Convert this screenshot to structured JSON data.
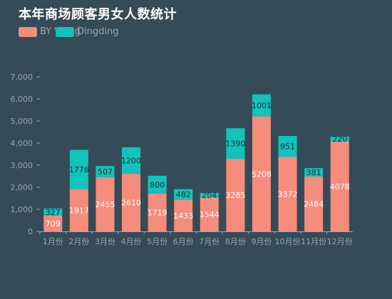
{
  "chart_data": {
    "type": "bar",
    "stacked": true,
    "title": "本年商场顾客男女人数统计",
    "categories": [
      "1月份",
      "2月份",
      "3月份",
      "4月份",
      "5月份",
      "6月份",
      "7月份",
      "8月份",
      "9月份",
      "10月份",
      "11月份",
      "12月份"
    ],
    "series": [
      {
        "name": "BY Wang",
        "color": "#f68c7c",
        "values": [
          709,
          1917,
          2455,
          2610,
          1719,
          1433,
          1544,
          3285,
          5208,
          3372,
          2484,
          4078
        ]
      },
      {
        "name": "Dingding",
        "color": "#13c2bb",
        "values": [
          327,
          1776,
          507,
          1200,
          800,
          482,
          204,
          1390,
          1001,
          951,
          381,
          220
        ]
      }
    ],
    "ylim": [
      0,
      7000
    ],
    "yticks": [
      0,
      1000,
      2000,
      3000,
      4000,
      5000,
      6000,
      7000
    ],
    "ytick_labels": [
      "0",
      "1,000",
      "2,000",
      "3,000",
      "4,000",
      "5,000",
      "6,000",
      "7,000"
    ],
    "grid": false,
    "legend_position": "top-left"
  }
}
